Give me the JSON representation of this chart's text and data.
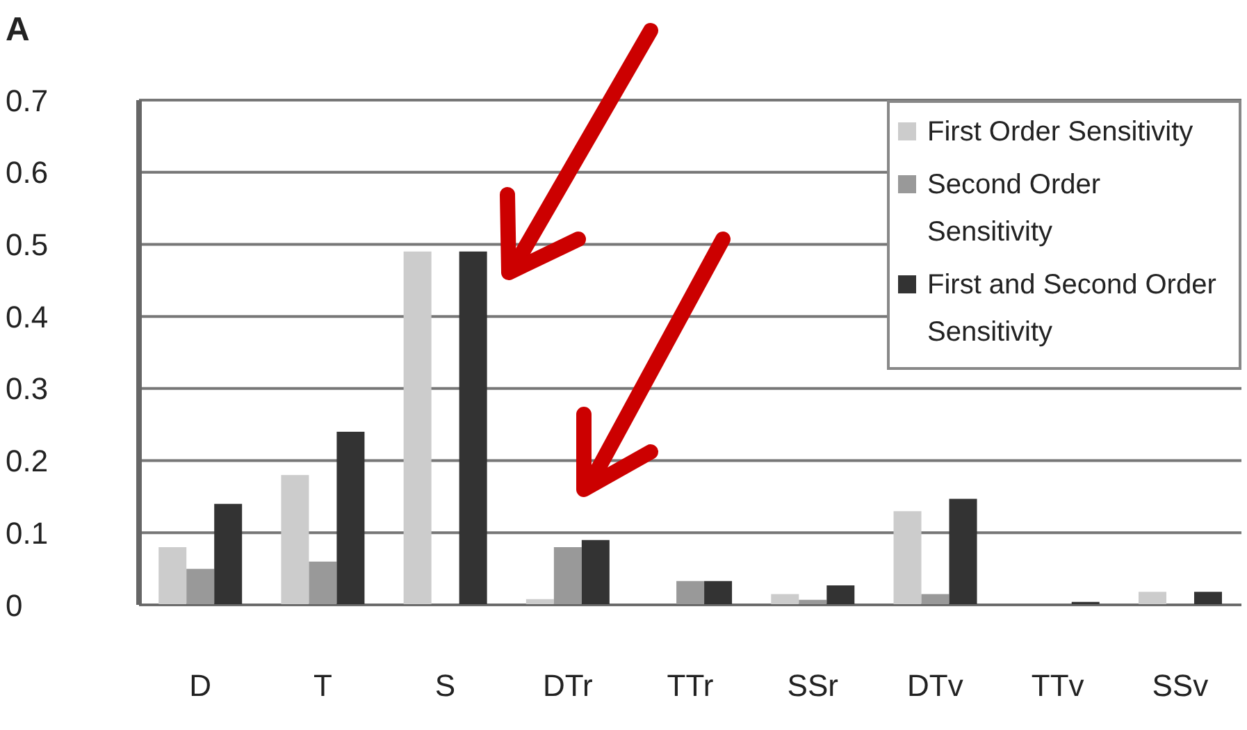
{
  "chart_data": {
    "type": "bar",
    "categories": [
      "D",
      "T",
      "S",
      "DTr",
      "TTr",
      "SSr",
      "DTv",
      "TTv",
      "SSv"
    ],
    "series": [
      {
        "name": "First Order Sensitivity",
        "color": "#cccccc",
        "values": [
          0.08,
          0.18,
          0.49,
          0.008,
          0,
          0.015,
          0.13,
          0,
          0.018
        ]
      },
      {
        "name": "Second Order Sensitivity",
        "color": "#999999",
        "values": [
          0.05,
          0.06,
          0,
          0.08,
          0.033,
          0.007,
          0.015,
          0,
          0
        ]
      },
      {
        "name": "First and Second Order Sensitivity",
        "color": "#333333",
        "values": [
          0.14,
          0.24,
          0.49,
          0.09,
          0.033,
          0.027,
          0.147,
          0.004,
          0.018
        ]
      }
    ],
    "ylim": [
      0,
      0.7
    ],
    "yticks": [
      0,
      0.1,
      0.2,
      0.3,
      0.4,
      0.5,
      0.6,
      0.7
    ],
    "grid": "y",
    "legend": "top right",
    "annotations": [
      "A"
    ]
  }
}
